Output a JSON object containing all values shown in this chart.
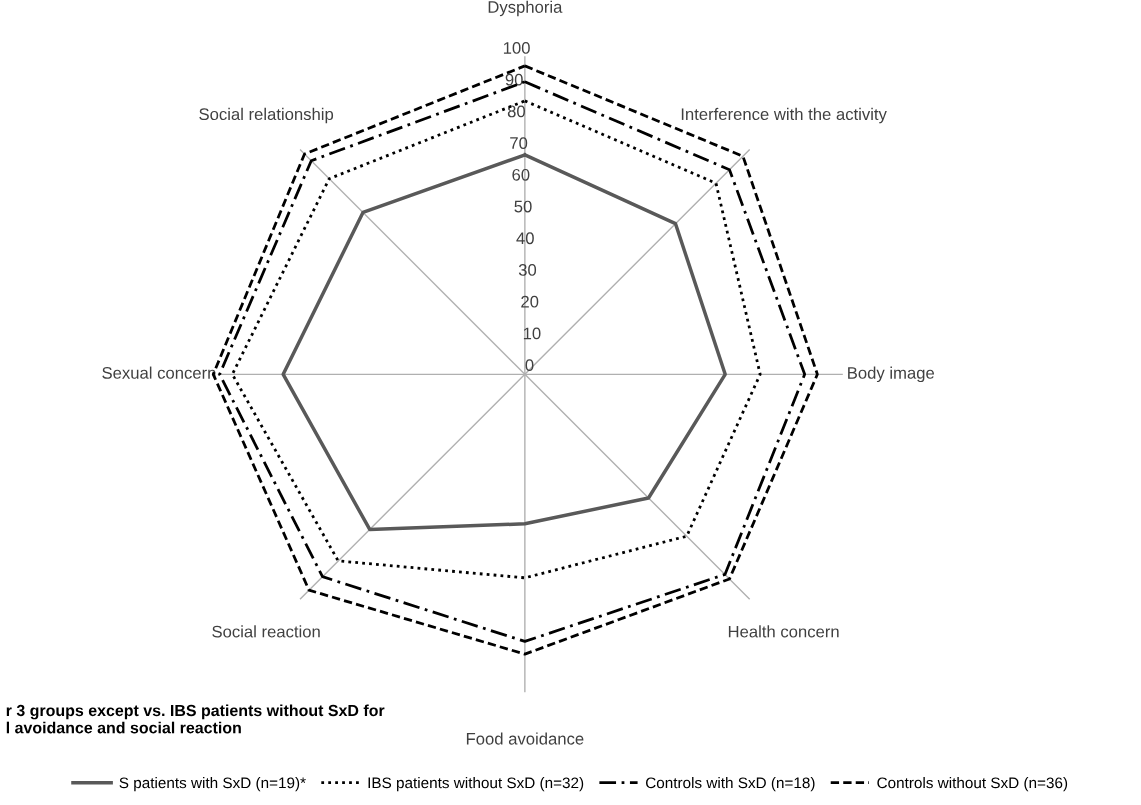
{
  "chart_data": {
    "type": "radar",
    "categories": [
      "Dysphoria",
      "Interference with the activity",
      "Body image",
      "Health concern",
      "Food avoidance",
      "Social reaction",
      "Sexual concern",
      "Social relationship"
    ],
    "ylim": [
      0,
      100
    ],
    "yticks": [
      0,
      10,
      20,
      30,
      40,
      50,
      60,
      70,
      80,
      90,
      100
    ],
    "grid": false,
    "legend": "bottom",
    "marker": "none",
    "series": [
      {
        "name": "S patients with SxD (n=19)*",
        "color": "#595959",
        "line_style": "solid",
        "values": [
          69,
          67,
          63,
          55,
          47,
          69,
          76,
          72
        ]
      },
      {
        "name": "IBS patients without SxD (n=32)",
        "color": "#000000",
        "line_style": "dotted",
        "values": [
          86,
          85,
          74,
          72,
          64,
          83,
          92,
          87
        ]
      },
      {
        "name": "Controls with SxD (n=18)",
        "color": "#000000",
        "line_style": "dashdot",
        "values": [
          92,
          91,
          88,
          89,
          84,
          90,
          96,
          95
        ]
      },
      {
        "name": "Controls without SxD (n=36)",
        "color": "#000000",
        "line_style": "dashed",
        "values": [
          97,
          97,
          92,
          91,
          88,
          96,
          98,
          98
        ]
      }
    ],
    "annotations": [
      "r 3 groups except vs. IBS patients without SxD for\nl avoidance and social reaction"
    ]
  }
}
